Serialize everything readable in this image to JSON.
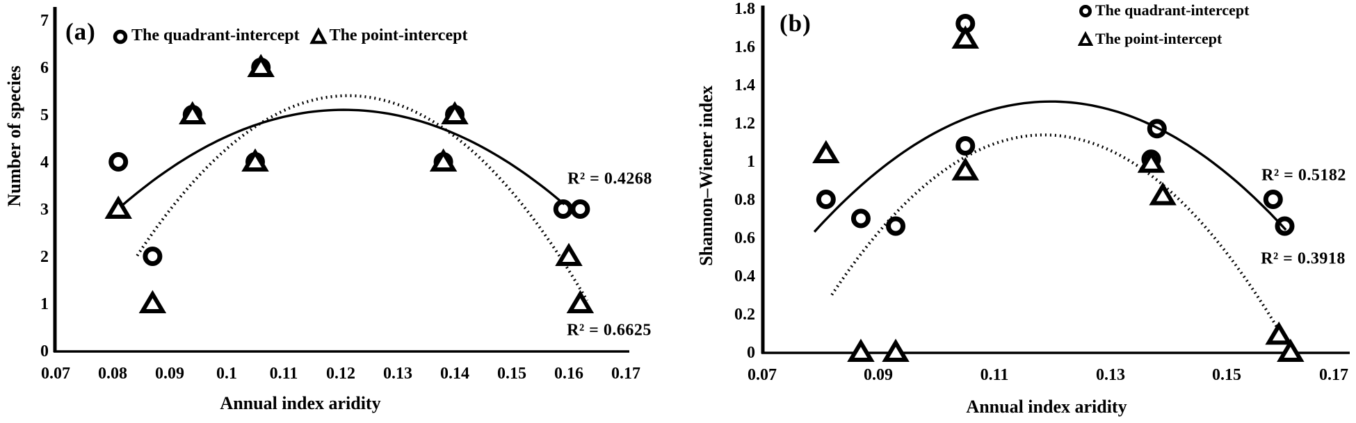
{
  "figure": {
    "background": "#ffffff",
    "ink_color": "#000000"
  },
  "chart_data": [
    {
      "type": "scatter",
      "panel_label": "(a)",
      "xlabel": "Annual index aridity",
      "ylabel": "Number of species",
      "xlim": [
        0.07,
        0.17
      ],
      "ylim": [
        0,
        7
      ],
      "grid": false,
      "x_ticks": [
        0.07,
        0.08,
        0.09,
        0.1,
        0.11,
        0.12,
        0.13,
        0.14,
        0.15,
        0.16,
        0.17
      ],
      "x_tick_labels": [
        "0.07",
        "0.08",
        "0.09",
        "0.1",
        "0.11",
        "0.12",
        "0.13",
        "0.14",
        "0.15",
        "0.16",
        "0.17"
      ],
      "y_ticks": [
        0,
        1,
        2,
        3,
        4,
        5,
        6,
        7
      ],
      "y_tick_labels": [
        "0",
        "1",
        "2",
        "3",
        "4",
        "5",
        "6",
        "7"
      ],
      "legend": {
        "position": "top",
        "entries": [
          {
            "marker": "circle",
            "label": "The quadrant-intercept"
          },
          {
            "marker": "triangle",
            "label": "The point-intercept"
          }
        ]
      },
      "series": [
        {
          "name": "The quadrant-intercept",
          "marker": "circle",
          "points": [
            [
              0.081,
              4
            ],
            [
              0.087,
              2
            ],
            [
              0.094,
              5
            ],
            [
              0.105,
              4
            ],
            [
              0.106,
              6
            ],
            [
              0.138,
              4
            ],
            [
              0.14,
              5
            ],
            [
              0.159,
              3
            ],
            [
              0.162,
              3
            ]
          ],
          "trendline": {
            "style": "solid",
            "fit": "quadratic",
            "r2": 0.4268,
            "through": [
              [
                0.08,
                2.9
              ],
              [
                0.1196,
                5.1
              ],
              [
                0.1592,
                3.1
              ]
            ],
            "x_range": [
              0.08,
              0.1592
            ]
          }
        },
        {
          "name": "The point-intercept",
          "marker": "triangle",
          "points": [
            [
              0.081,
              3
            ],
            [
              0.087,
              1
            ],
            [
              0.094,
              5
            ],
            [
              0.105,
              4
            ],
            [
              0.106,
              6
            ],
            [
              0.138,
              4
            ],
            [
              0.14,
              5
            ],
            [
              0.16,
              2
            ],
            [
              0.162,
              1
            ]
          ],
          "trendline": {
            "style": "dotted",
            "fit": "quadratic",
            "r2": 0.6625,
            "through": [
              [
                0.0845,
                2.05
              ],
              [
                0.122,
                5.4
              ],
              [
                0.1635,
                1.0
              ]
            ],
            "x_range": [
              0.0843,
              0.1632
            ]
          }
        }
      ],
      "annotations": [
        {
          "text": "R² = 0.4268",
          "x": 0.167,
          "y": 3.65
        },
        {
          "text": "R² = 0.6625",
          "x": 0.1668,
          "y": 0.44
        }
      ]
    },
    {
      "type": "scatter",
      "panel_label": "(b)",
      "xlabel": "Annual index aridity",
      "ylabel": "Shannon–Wiener index",
      "xlim": [
        0.07,
        0.17
      ],
      "ylim": [
        0,
        1.8
      ],
      "grid": false,
      "x_ticks": [
        0.07,
        0.09,
        0.11,
        0.13,
        0.15,
        0.17
      ],
      "x_tick_labels": [
        "0.07",
        "0.09",
        "0.11",
        "0.13",
        "0.15",
        "0.17"
      ],
      "y_ticks": [
        0,
        0.2,
        0.4,
        0.6,
        0.8,
        1,
        1.2,
        1.4,
        1.6,
        1.8
      ],
      "y_tick_labels": [
        "0",
        "0.2",
        "0.4",
        "0.6",
        "0.8",
        "1",
        "1.2",
        "1.4",
        "1.6",
        "1.8"
      ],
      "legend": {
        "position": "top-right",
        "entries": [
          {
            "marker": "circle",
            "label": "The quadrant-intercept"
          },
          {
            "marker": "triangle",
            "label": "The point-intercept"
          }
        ]
      },
      "series": [
        {
          "name": "The quadrant-intercept",
          "marker": "circle",
          "points": [
            [
              0.081,
              0.8
            ],
            [
              0.087,
              0.7
            ],
            [
              0.093,
              0.66
            ],
            [
              0.105,
              1.08
            ],
            [
              0.105,
              1.72
            ],
            [
              0.137,
              1.01
            ],
            [
              0.138,
              1.17
            ],
            [
              0.158,
              0.8
            ],
            [
              0.16,
              0.66
            ]
          ],
          "trendline": {
            "style": "solid",
            "fit": "quadratic",
            "r2": 0.5182,
            "through": [
              [
                0.079,
                0.63
              ],
              [
                0.122,
                1.31
              ],
              [
                0.1602,
                0.64
              ]
            ],
            "x_range": [
              0.079,
              0.1602
            ]
          }
        },
        {
          "name": "The point-intercept",
          "marker": "triangle",
          "points": [
            [
              0.081,
              1.04
            ],
            [
              0.087,
              0.0
            ],
            [
              0.093,
              0.0
            ],
            [
              0.105,
              0.95
            ],
            [
              0.105,
              1.64
            ],
            [
              0.137,
              0.99
            ],
            [
              0.139,
              0.82
            ],
            [
              0.159,
              0.09
            ],
            [
              0.161,
              0.0
            ]
          ],
          "trendline": {
            "style": "dotted",
            "fit": "quadratic",
            "r2": 0.3918,
            "through": [
              [
                0.082,
                0.3
              ],
              [
                0.122,
                1.13
              ],
              [
                0.1612,
                0.0
              ]
            ],
            "x_range": [
              0.082,
              0.1612
            ]
          }
        }
      ],
      "annotations": [
        {
          "text": "R² = 0.5182",
          "x": 0.1632,
          "y": 0.93
        },
        {
          "text": "R² = 0.3918",
          "x": 0.163,
          "y": 0.49
        }
      ]
    }
  ]
}
